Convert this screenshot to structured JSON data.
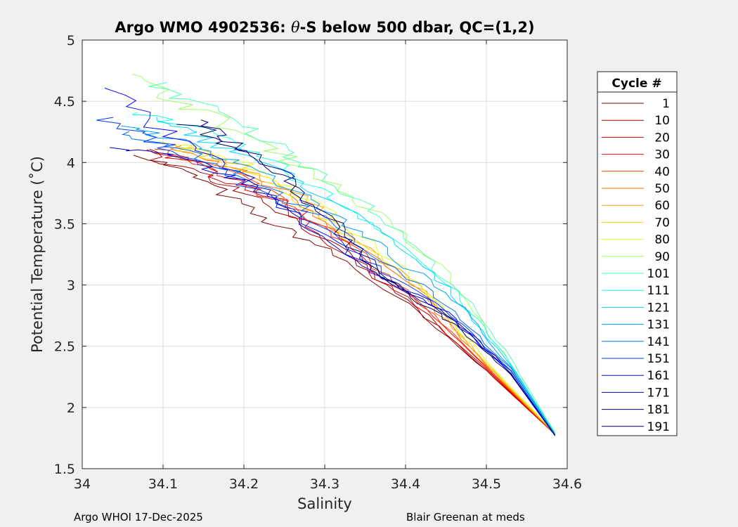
{
  "chart_data": {
    "type": "line",
    "title_prefix": "Argo WMO 4902536: ",
    "title_symbol": "θ",
    "title_suffix": "-S below 500 dbar,  QC=(1,2)",
    "xlabel": "Salinity",
    "ylabel": "Potential Temperature (˚C)",
    "xlim": [
      34.0,
      34.6
    ],
    "ylim": [
      1.5,
      5.0
    ],
    "xticks": [
      34.0,
      34.1,
      34.2,
      34.3,
      34.4,
      34.5,
      34.6
    ],
    "xtick_labels": [
      "34",
      "34.1",
      "34.2",
      "34.3",
      "34.4",
      "34.5",
      "34.6"
    ],
    "yticks": [
      1.5,
      2.0,
      2.5,
      3.0,
      3.5,
      4.0,
      4.5,
      5.0
    ],
    "ytick_labels": [
      "1.5",
      "2",
      "2.5",
      "3",
      "3.5",
      "4",
      "4.5",
      "5"
    ],
    "grid": true,
    "legend_title": "Cycle #",
    "legend_position": "right-outside",
    "colormap": "jet",
    "series": [
      {
        "name": "1",
        "color": "#7f0000",
        "s": [
          34.08,
          34.15,
          34.22,
          34.3,
          34.4,
          34.5,
          34.585
        ],
        "t": [
          4.05,
          3.85,
          3.55,
          3.3,
          2.85,
          2.3,
          1.78
        ]
      },
      {
        "name": "10",
        "color": "#a80000",
        "s": [
          34.07,
          34.15,
          34.23,
          34.31,
          34.4,
          34.5,
          34.585
        ],
        "t": [
          4.1,
          3.9,
          3.68,
          3.32,
          2.88,
          2.3,
          1.78
        ]
      },
      {
        "name": "20",
        "color": "#d40000",
        "s": [
          34.09,
          34.16,
          34.24,
          34.31,
          34.4,
          34.5,
          34.585
        ],
        "t": [
          4.1,
          3.92,
          3.7,
          3.33,
          2.9,
          2.31,
          1.78
        ]
      },
      {
        "name": "30",
        "color": "#f20f00",
        "s": [
          34.1,
          34.17,
          34.25,
          34.32,
          34.41,
          34.5,
          34.585
        ],
        "t": [
          4.08,
          3.9,
          3.68,
          3.35,
          2.88,
          2.32,
          1.78
        ]
      },
      {
        "name": "40",
        "color": "#ff3c00",
        "s": [
          34.1,
          34.17,
          34.25,
          34.32,
          34.41,
          34.5,
          34.585
        ],
        "t": [
          4.12,
          3.95,
          3.72,
          3.38,
          2.9,
          2.33,
          1.78
        ]
      },
      {
        "name": "50",
        "color": "#ff6a00",
        "s": [
          34.11,
          34.18,
          34.26,
          34.33,
          34.42,
          34.5,
          34.585
        ],
        "t": [
          4.13,
          3.96,
          3.74,
          3.38,
          2.92,
          2.34,
          1.78
        ]
      },
      {
        "name": "60",
        "color": "#ffa000",
        "s": [
          34.11,
          34.19,
          34.26,
          34.33,
          34.42,
          34.5,
          34.585
        ],
        "t": [
          4.15,
          4.0,
          3.76,
          3.42,
          2.95,
          2.35,
          1.79
        ]
      },
      {
        "name": "70",
        "color": "#ffd200",
        "s": [
          34.12,
          34.19,
          34.27,
          34.33,
          34.42,
          34.5,
          34.585
        ],
        "t": [
          4.12,
          3.97,
          3.7,
          3.4,
          2.97,
          2.36,
          1.79
        ]
      },
      {
        "name": "80",
        "color": "#e6ff19",
        "s": [
          34.1,
          34.18,
          34.26,
          34.33,
          34.42,
          34.5,
          34.585
        ],
        "t": [
          4.18,
          4.05,
          3.8,
          3.48,
          3.0,
          2.38,
          1.79
        ]
      },
      {
        "name": "90",
        "color": "#9bff64",
        "s": [
          34.05,
          34.13,
          34.2,
          34.28,
          34.36,
          34.45,
          34.52,
          34.585
        ],
        "t": [
          4.72,
          4.48,
          4.23,
          3.95,
          3.6,
          3.1,
          2.45,
          1.8
        ]
      },
      {
        "name": "101",
        "color": "#50ff af",
        "s": [
          34.09,
          34.16,
          34.23,
          34.3,
          34.38,
          34.46,
          34.53,
          34.585
        ],
        "t": [
          4.65,
          4.42,
          4.18,
          3.9,
          3.5,
          3.0,
          2.4,
          1.79
        ]
      },
      {
        "name": "111",
        "color": "#19ffe6",
        "s": [
          34.07,
          34.15,
          34.22,
          34.3,
          34.38,
          34.46,
          34.53,
          34.585
        ],
        "t": [
          4.42,
          4.25,
          4.05,
          3.75,
          3.42,
          2.95,
          2.36,
          1.79
        ]
      },
      {
        "name": "121",
        "color": "#00d6ff",
        "s": [
          34.08,
          34.15,
          34.22,
          34.3,
          34.38,
          34.46,
          34.53,
          34.585
        ],
        "t": [
          4.36,
          4.2,
          4.02,
          3.72,
          3.38,
          2.92,
          2.35,
          1.78
        ]
      },
      {
        "name": "131",
        "color": "#00a0ff",
        "s": [
          34.06,
          34.13,
          34.21,
          34.29,
          34.37,
          34.46,
          34.53,
          34.585
        ],
        "t": [
          4.3,
          4.15,
          3.97,
          3.66,
          3.3,
          2.88,
          2.33,
          1.78
        ]
      },
      {
        "name": "141",
        "color": "#006eff",
        "s": [
          34.05,
          34.12,
          34.2,
          34.28,
          34.36,
          34.45,
          34.53,
          34.585
        ],
        "t": [
          4.25,
          4.12,
          3.9,
          3.6,
          3.25,
          2.85,
          2.32,
          1.78
        ]
      },
      {
        "name": "151",
        "color": "#003cff",
        "s": [
          34.02,
          34.1,
          34.18,
          34.27,
          34.35,
          34.45,
          34.53,
          34.585
        ],
        "t": [
          4.36,
          4.15,
          3.9,
          3.58,
          3.2,
          2.8,
          2.3,
          1.77
        ]
      },
      {
        "name": "161",
        "color": "#000af5",
        "s": [
          34.03,
          34.11,
          34.19,
          34.27,
          34.35,
          34.45,
          34.53,
          34.585
        ],
        "t": [
          4.6,
          4.2,
          3.92,
          3.55,
          3.15,
          2.78,
          2.3,
          1.77
        ]
      },
      {
        "name": "171",
        "color": "#0000c8",
        "s": [
          34.04,
          34.12,
          34.2,
          34.28,
          34.36,
          34.45,
          34.53,
          34.585
        ],
        "t": [
          4.12,
          4.05,
          3.85,
          3.5,
          3.1,
          2.76,
          2.28,
          1.77
        ]
      },
      {
        "name": "181",
        "color": "#000096",
        "s": [
          34.14,
          34.2,
          34.26,
          34.32,
          34.38,
          34.46,
          34.53,
          34.585
        ],
        "t": [
          4.35,
          4.12,
          3.85,
          3.45,
          3.05,
          2.7,
          2.28,
          1.77
        ]
      },
      {
        "name": "191",
        "color": "#000064",
        "s": [
          34.13,
          34.2,
          34.26,
          34.32,
          34.38,
          34.46,
          34.53,
          34.585
        ],
        "t": [
          4.32,
          4.1,
          3.82,
          3.42,
          3.02,
          2.68,
          2.27,
          1.77
        ]
      }
    ],
    "footer_left": "Argo WHOI 17-Dec-2025",
    "footer_right": "Blair Greenan at meds"
  }
}
